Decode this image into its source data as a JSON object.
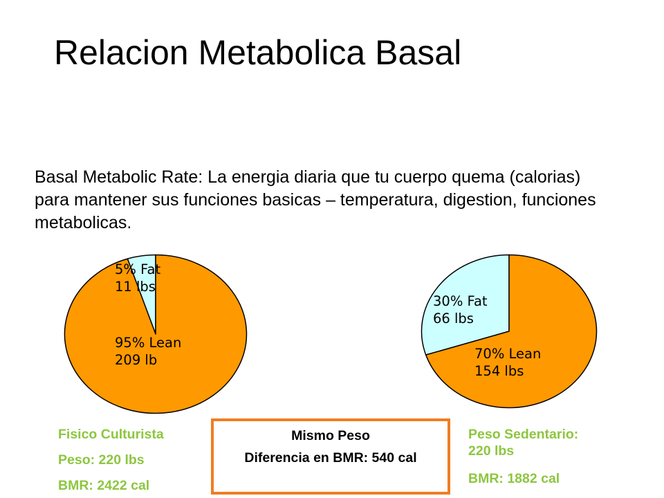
{
  "slide": {
    "title": "Relacion Metabolica Basal",
    "intro": "Basal Metabolic Rate: La energia diaria que tu cuerpo quema (calorias) para mantener sus funciones basicas – temperatura, digestion, funciones metabolicas."
  },
  "colors": {
    "lean": "#ff9900",
    "fat": "#ccffff",
    "stroke": "#000000",
    "caption_green": "#8dc63f",
    "box_border": "#f07d21"
  },
  "chart_data": [
    {
      "type": "pie",
      "slices": [
        {
          "category": "Fat",
          "value": 5,
          "line1": "5% Fat",
          "line2": "11 lbs",
          "color": "#ccffff"
        },
        {
          "category": "Lean",
          "value": 95,
          "line1": "95% Lean",
          "line2": "209 lb",
          "color": "#ff9900"
        }
      ]
    },
    {
      "type": "pie",
      "slices": [
        {
          "category": "Fat",
          "value": 30,
          "line1": "30% Fat",
          "line2": "66 lbs",
          "color": "#ccffff"
        },
        {
          "category": "Lean",
          "value": 70,
          "line1": "70% Lean",
          "line2": "154 lbs",
          "color": "#ff9900"
        }
      ]
    }
  ],
  "left_caption": {
    "line1": "Fisico Culturista",
    "line2": "Peso: 220 lbs",
    "line3": "BMR: 2422 cal"
  },
  "right_caption": {
    "line1": "Peso Sedentario:",
    "line2": "220 lbs",
    "line3": "BMR: 1882 cal"
  },
  "center_box": {
    "line1": "Mismo Peso",
    "line2": "Diferencia en BMR: 540 cal"
  }
}
